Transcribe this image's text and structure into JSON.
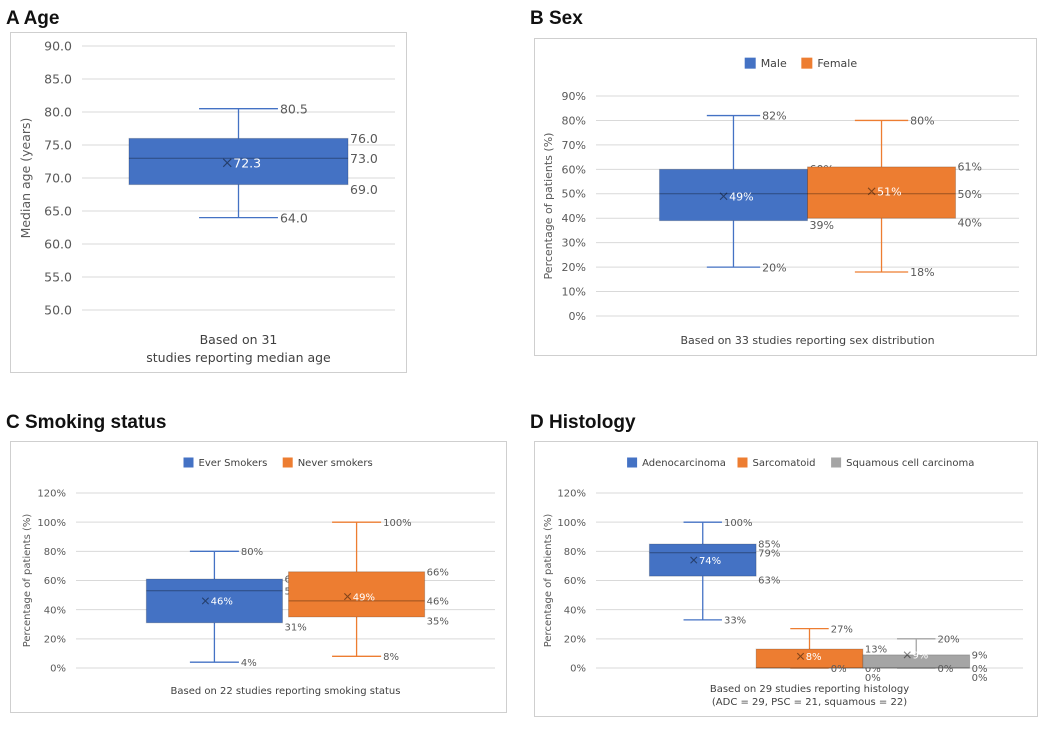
{
  "chart_data": [
    {
      "id": "A",
      "type": "box",
      "panel_title": "A Age",
      "ylabel": "Median age (years)",
      "ylim": [
        50,
        90
      ],
      "yticks": [
        "50.0",
        "55.0",
        "60.0",
        "65.0",
        "70.0",
        "75.0",
        "80.0",
        "85.0",
        "90.0"
      ],
      "ytick_values": [
        50,
        55,
        60,
        65,
        70,
        75,
        80,
        85,
        90
      ],
      "legend": "none",
      "grid": true,
      "caption": [
        "Based on 31",
        "studies reporting median age"
      ],
      "series": [
        {
          "name": "",
          "color": "#4472C4",
          "min": 64.0,
          "q1": 69.0,
          "median": 73.0,
          "q3": 76.0,
          "max": 80.5,
          "mean": 72.3,
          "labels": {
            "max": "80.5",
            "q3": "76.0",
            "median": "73.0",
            "q1": "69.0",
            "min": "64.0",
            "mean": "72.3"
          }
        }
      ]
    },
    {
      "id": "B",
      "type": "box",
      "panel_title": "B Sex",
      "ylabel": "Percentage of patients (%)",
      "ylim": [
        0,
        90
      ],
      "yticks": [
        "0%",
        "10%",
        "20%",
        "30%",
        "40%",
        "50%",
        "60%",
        "70%",
        "80%",
        "90%"
      ],
      "ytick_values": [
        0,
        10,
        20,
        30,
        40,
        50,
        60,
        70,
        80,
        90
      ],
      "legend": "top",
      "grid": true,
      "caption": [
        "Based on 33 studies reporting sex distribution"
      ],
      "series": [
        {
          "name": "Male",
          "color": "#4472C4",
          "min": 20,
          "q1": 39,
          "median": 50,
          "q3": 60,
          "max": 82,
          "mean": 49,
          "labels": {
            "max": "82%",
            "q3": "60%",
            "median": "50%",
            "q1": "39%",
            "min": "20%",
            "mean": "49%"
          }
        },
        {
          "name": "Female",
          "color": "#ED7D31",
          "min": 18,
          "q1": 40,
          "median": 50,
          "q3": 61,
          "max": 80,
          "mean": 51,
          "labels": {
            "max": "80%",
            "q3": "61%",
            "median": "50%",
            "q1": "40%",
            "min": "18%",
            "mean": "51%"
          }
        }
      ]
    },
    {
      "id": "C",
      "type": "box",
      "panel_title": "C Smoking status",
      "ylabel": "Percentage of patients (%)",
      "ylim": [
        0,
        120
      ],
      "yticks": [
        "0%",
        "20%",
        "40%",
        "60%",
        "80%",
        "100%",
        "120%"
      ],
      "ytick_values": [
        0,
        20,
        40,
        60,
        80,
        100,
        120
      ],
      "legend": "top",
      "grid": true,
      "caption": [
        "Based on 22 studies reporting smoking status"
      ],
      "series": [
        {
          "name": "Ever Smokers",
          "color": "#4472C4",
          "min": 4,
          "q1": 31,
          "median": 53,
          "q3": 61,
          "max": 80,
          "mean": 46,
          "labels": {
            "max": "80%",
            "q3": "61%",
            "median": "53%",
            "q1": "31%",
            "min": "4%",
            "mean": "46%"
          }
        },
        {
          "name": "Never smokers",
          "color": "#ED7D31",
          "min": 8,
          "q1": 35,
          "median": 46,
          "q3": 66,
          "max": 100,
          "mean": 49,
          "labels": {
            "max": "100%",
            "q3": "66%",
            "median": "46%",
            "q1": "35%",
            "min": "8%",
            "mean": "49%"
          }
        }
      ]
    },
    {
      "id": "D",
      "type": "box",
      "panel_title": "D Histology",
      "ylabel": "Percentage of patients (%)",
      "ylim": [
        0,
        120
      ],
      "yticks": [
        "0%",
        "20%",
        "40%",
        "60%",
        "80%",
        "100%",
        "120%"
      ],
      "ytick_values": [
        0,
        20,
        40,
        60,
        80,
        100,
        120
      ],
      "legend": "top",
      "grid": true,
      "caption": [
        "Based on 29 studies reporting histology",
        "(ADC = 29, PSC = 21, squamous = 22)"
      ],
      "series": [
        {
          "name": "Adenocarcinoma",
          "color": "#4472C4",
          "min": 33,
          "q1": 63,
          "median": 79,
          "q3": 85,
          "max": 100,
          "mean": 74,
          "labels": {
            "max": "100%",
            "q3": "85%",
            "median": "79%",
            "q1": "63%",
            "min": "33%",
            "mean": "74%"
          }
        },
        {
          "name": "Sarcomatoid",
          "color": "#ED7D31",
          "min": 0,
          "q1": 0,
          "median": 0,
          "q3": 13,
          "max": 27,
          "mean": 8,
          "labels": {
            "max": "27%",
            "q3": "13%",
            "median": "0%",
            "q1": "0%",
            "min": "0%",
            "mean": "8%"
          }
        },
        {
          "name": "Squamous cell carcinoma",
          "color": "#A5A5A5",
          "min": 0,
          "q1": 0,
          "median": 0,
          "q3": 9,
          "max": 20,
          "mean": 9,
          "labels": {
            "max": "20%",
            "q3": "9%",
            "median": "0%",
            "q1": "0%",
            "min": "0%",
            "mean": "9%"
          }
        }
      ]
    }
  ]
}
